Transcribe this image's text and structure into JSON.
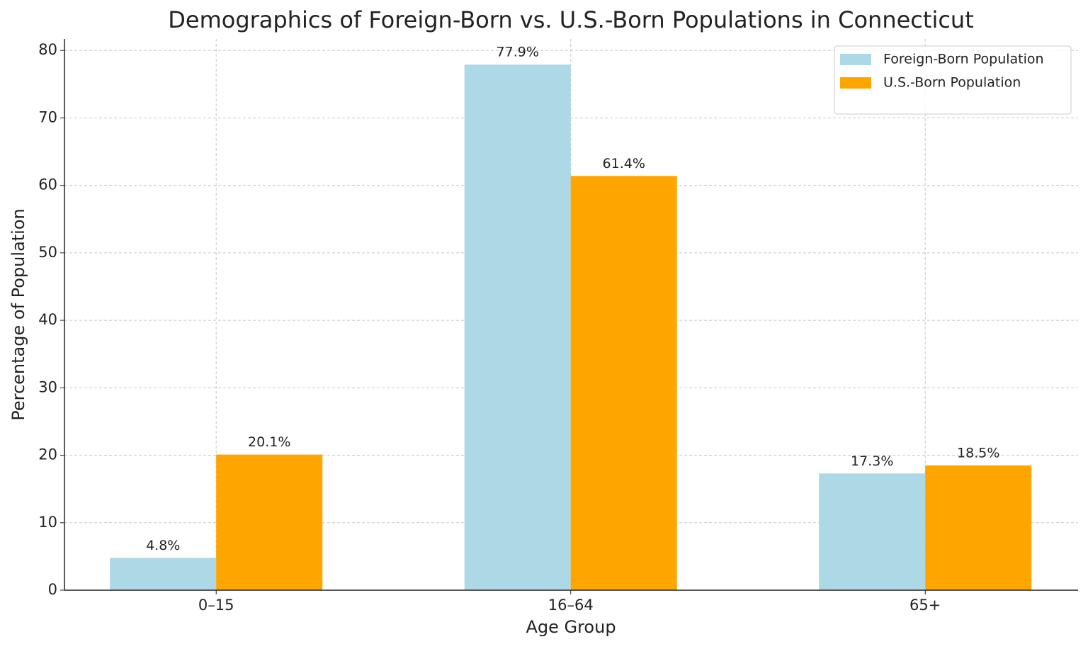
{
  "chart_data": {
    "type": "bar",
    "title": "Demographics of Foreign-Born vs. U.S.-Born Populations in Connecticut",
    "x_label": "Age Group",
    "y_label": "Percentage of Population",
    "categories": [
      "0–15",
      "16–64",
      "65+"
    ],
    "series": [
      {
        "name": "Foreign-Born Population",
        "color": "#add8e6",
        "values": [
          4.8,
          77.9,
          17.3
        ],
        "value_labels": [
          "4.8%",
          "77.9%",
          "17.3%"
        ]
      },
      {
        "name": "U.S.-Born Population",
        "color": "#ffa500",
        "values": [
          20.1,
          61.4,
          18.5
        ],
        "value_labels": [
          "20.1%",
          "61.4%",
          "18.5%"
        ]
      }
    ],
    "ylim": [
      0,
      81.7
    ],
    "yticks": [
      0,
      10,
      20,
      30,
      40,
      50,
      60,
      70,
      80
    ],
    "grid": true,
    "legend": "upper-right"
  }
}
